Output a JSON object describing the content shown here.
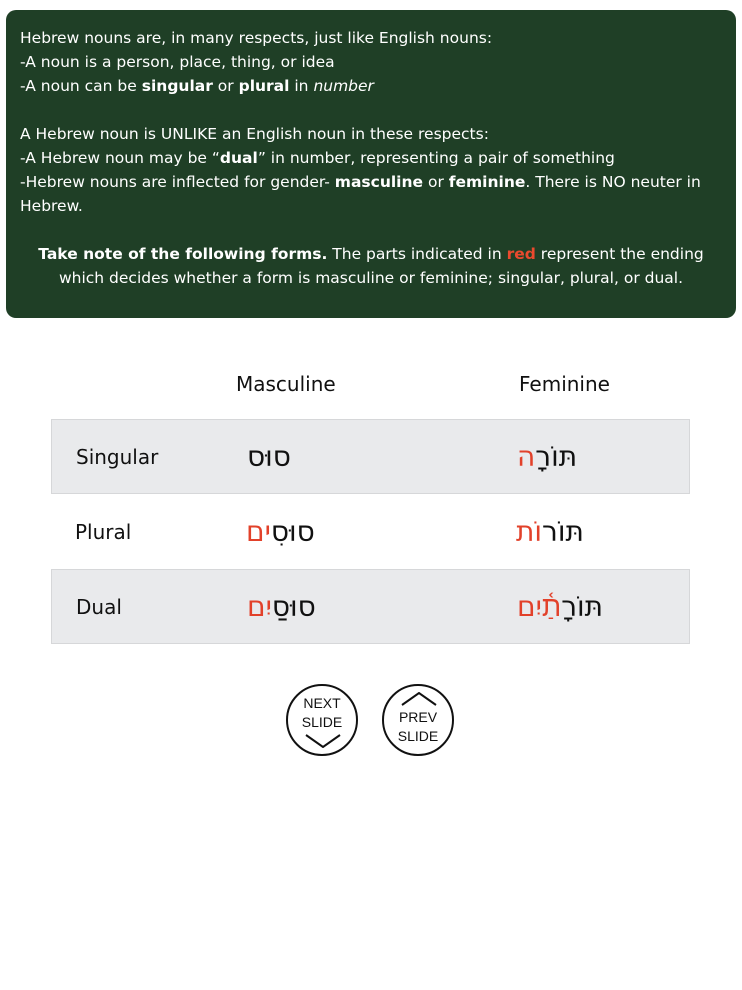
{
  "intro": {
    "line1": "Hebrew nouns are, in many respects, just like English nouns:",
    "line2": "-A noun is a person, place, thing, or idea",
    "line3_pre": "-A noun can be ",
    "line3_b1": "singular",
    "line3_mid": " or ",
    "line3_b2": "plural",
    "line3_post": " in ",
    "line3_em": "number",
    "line4": "A Hebrew noun is UNLIKE an English noun in these respects:",
    "line5_pre": "-A Hebrew noun may be “",
    "line5_b": "dual",
    "line5_post": "” in number, representing a pair of something",
    "line6_pre": "-Hebrew nouns are inflected for gender- ",
    "line6_b1": "masculine",
    "line6_mid": " or ",
    "line6_b2": "feminine",
    "line6_post": ".  There is NO neuter in Hebrew.",
    "note_bold": "Take note of the following forms.",
    "note_pre": "  The parts indicated in ",
    "note_red": "red",
    "note_post": " represent the ending which decides whether a form is masculine or feminine; singular, plural, or dual."
  },
  "table": {
    "headers": {
      "masculine": "Masculine",
      "feminine": "Feminine"
    },
    "rows": [
      {
        "label": "Singular",
        "masc_base": "סוּס",
        "masc_end": "",
        "fem_base": "תּוֹרָ",
        "fem_end": "ה"
      },
      {
        "label": "Plural",
        "masc_base": "סוּסִ",
        "masc_end": "ים",
        "fem_base": "תּוֹר",
        "fem_end": "וֹת"
      },
      {
        "label": "Dual",
        "masc_base": "סוּסַ",
        "masc_end": "יִם",
        "fem_base": "תּוֹרָ",
        "fem_end": "תַ֫יִם"
      }
    ]
  },
  "nav": {
    "next_line1": "NEXT",
    "next_line2": "SLIDE",
    "prev_line1": "PREV",
    "prev_line2": "SLIDE"
  },
  "colors": {
    "panel_bg": "#1f3f26",
    "ending_red": "#e2412a",
    "row_shade": "#e9eaec"
  }
}
